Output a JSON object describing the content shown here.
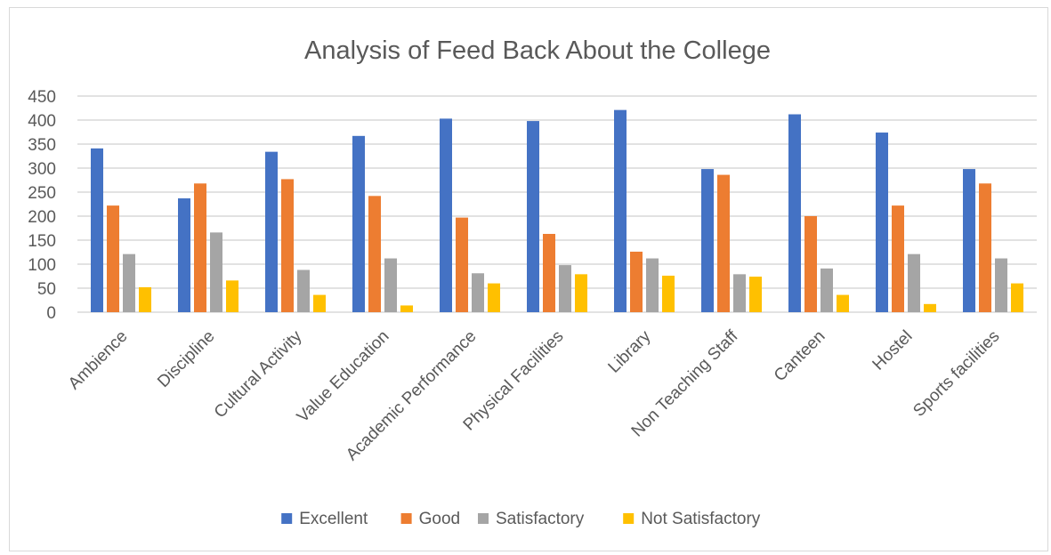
{
  "colors": {
    "Excellent": "#4472c4",
    "Good": "#ed7d31",
    "Satisfactory": "#a5a5a5",
    "Not Satisfactory": "#ffc000",
    "grid": "#d9d9d9",
    "text": "#595959"
  },
  "chart_data": {
    "type": "bar",
    "title": "Analysis of Feed Back About the College",
    "xlabel": "",
    "ylabel": "",
    "ylim": [
      0,
      450
    ],
    "yticks": [
      0,
      50,
      100,
      150,
      200,
      250,
      300,
      350,
      400,
      450
    ],
    "grid": true,
    "legend_position": "bottom",
    "categories": [
      "Ambience",
      "Discipline",
      "Cultural Activity",
      "Value Education",
      "Academic Performance",
      "Physical Facilities",
      "Library",
      "Non Teaching Staff",
      "Canteen",
      "Hostel",
      "Sports facilities"
    ],
    "series": [
      {
        "name": "Excellent",
        "values": [
          341,
          237,
          334,
          367,
          403,
          398,
          421,
          298,
          412,
          374,
          298
        ]
      },
      {
        "name": "Good",
        "values": [
          222,
          268,
          277,
          242,
          197,
          163,
          126,
          286,
          200,
          222,
          268
        ]
      },
      {
        "name": "Satisfactory",
        "values": [
          121,
          166,
          88,
          112,
          81,
          98,
          112,
          79,
          91,
          121,
          112
        ]
      },
      {
        "name": "Not Satisfactory",
        "values": [
          52,
          66,
          36,
          14,
          60,
          79,
          76,
          74,
          36,
          17,
          60
        ]
      }
    ]
  }
}
